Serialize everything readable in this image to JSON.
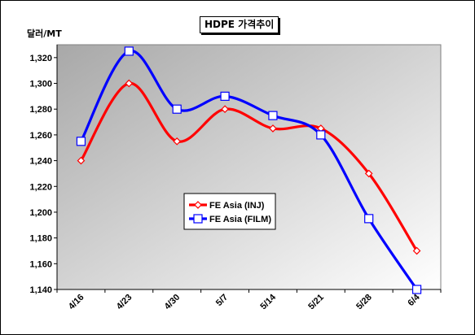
{
  "chart_data": {
    "type": "line",
    "title": "HDPE 가격추이",
    "ylabel": "달러/MT",
    "xlabel": "",
    "categories": [
      "4/16",
      "4/23",
      "4/30",
      "5/7",
      "5/14",
      "5/21",
      "5/28",
      "6/4"
    ],
    "series": [
      {
        "name": "FE Asia (INJ)",
        "color": "#ff0000",
        "marker": "diamond",
        "values": [
          1240,
          1300,
          1255,
          1280,
          1265,
          1265,
          1230,
          1170
        ]
      },
      {
        "name": "FE Asia (FILM)",
        "color": "#0000ff",
        "marker": "square",
        "values": [
          1255,
          1325,
          1280,
          1290,
          1275,
          1260,
          1195,
          1140
        ]
      }
    ],
    "ylim": [
      1140,
      1330
    ],
    "yticks": [
      1140,
      1160,
      1180,
      1200,
      1220,
      1240,
      1260,
      1280,
      1300,
      1320
    ],
    "ytick_labels": [
      "1,140",
      "1,160",
      "1,180",
      "1,200",
      "1,220",
      "1,240",
      "1,260",
      "1,280",
      "1,300",
      "1,320"
    ],
    "grid": false,
    "legend_position": "center",
    "plot_background": "gradient #b0b0b0 to #ffffff"
  }
}
